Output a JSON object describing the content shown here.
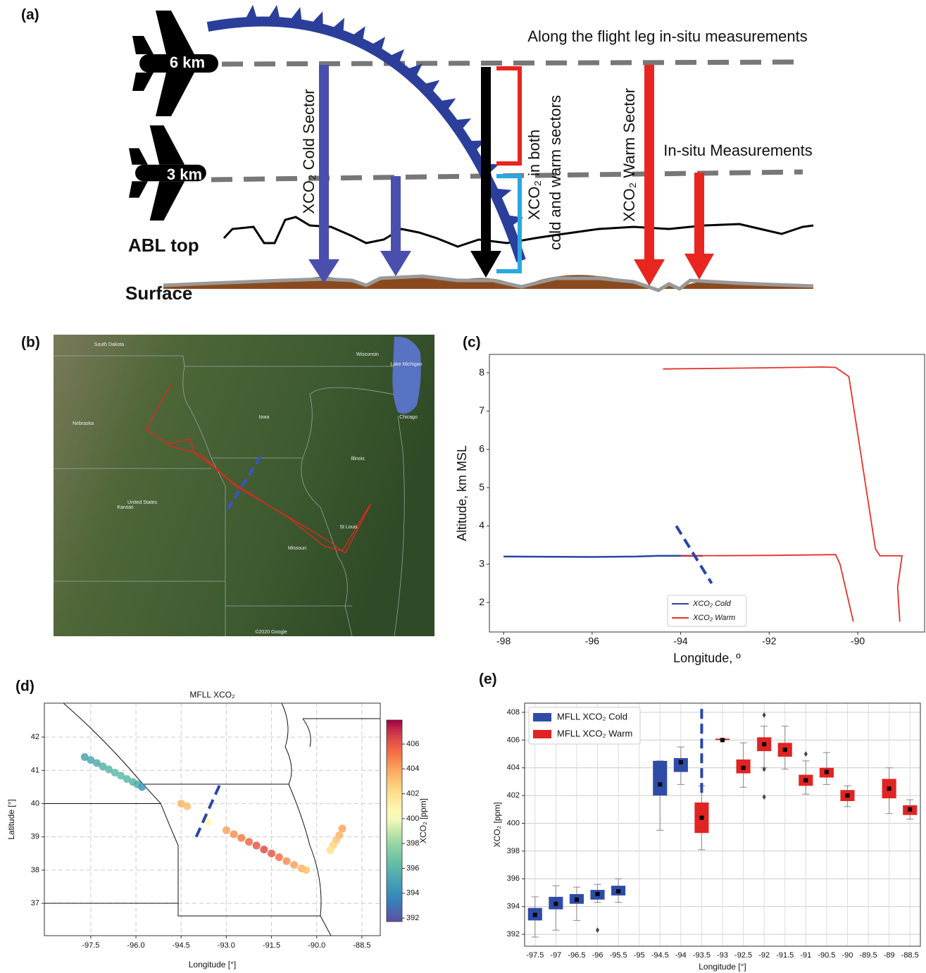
{
  "panel_labels": [
    "(a)",
    "(b)",
    "(c)",
    "(d)",
    "(e)"
  ],
  "diagram": {
    "top_note": "Along the flight leg in-situ measurements",
    "altitudes": [
      "6 km",
      "3 km"
    ],
    "cold_sector": "XCO₂ Cold Sector",
    "both_sectors": [
      "XCO₂ in both",
      "cold and warm sectors"
    ],
    "warm_sector": "XCO₂ Warm Sector",
    "in_situ": "In-situ Measurements",
    "abl_top": "ABL top",
    "surface": "Surface"
  },
  "map": {
    "labels": [
      "South Dakota",
      "Wisconsin",
      "Lake Michigan",
      "Nebraska",
      "Iowa",
      "Chicago",
      "Illinois",
      "United States",
      "Kansas",
      "St Louis",
      "Missouri",
      "©2020 Google"
    ]
  },
  "chart_data": [
    {
      "type": "line",
      "x_label": "Longitude, º",
      "y_label": "Altitude, km MSL",
      "xlim": [
        -98.32,
        -88.49
      ],
      "ylim": [
        1.23,
        8.48
      ],
      "xticks": [
        -98,
        -96,
        -94,
        -92,
        -90
      ],
      "yticks": [
        2,
        3,
        4,
        5,
        6,
        7,
        8
      ],
      "legend": "lower center",
      "series": [
        {
          "name": "XCO₂ Cold",
          "color": "#2a44a8",
          "x": [
            -98,
            -96,
            -95,
            -94.5,
            -94,
            -93.5
          ],
          "values": [
            3.2,
            3.19,
            3.2,
            3.22,
            3.22,
            3.22
          ]
        },
        {
          "name": "XCO₂ Warm",
          "color": "#e8302a",
          "x": [
            -94.4,
            -92,
            -90.8,
            -90.5,
            -90.2,
            -89.6,
            -89.5,
            -89,
            -89.1,
            -89.05,
            null,
            -94,
            -92,
            -90.5,
            -90.4,
            -90.1
          ],
          "values": [
            8.1,
            8.13,
            8.15,
            8.14,
            7.9,
            3.4,
            3.22,
            3.22,
            2.4,
            1.5,
            null,
            3.22,
            3.23,
            3.25,
            3.0,
            1.5
          ]
        }
      ],
      "front": {
        "color": "#2a44a8",
        "x": [
          -94.1,
          -93.3
        ],
        "values": [
          4.0,
          2.5
        ]
      }
    },
    {
      "type": "scatter",
      "title": "MFLL XCO₂",
      "x_label": "Longitude [°]",
      "y_label": "Latitude [°]",
      "colorbar_label": "XCO₂ [ppm]",
      "xlim": [
        -99.04,
        -87.89
      ],
      "ylim": [
        36.03,
        43.02
      ],
      "xticks": [
        -97.5,
        {
          "value": -96,
          "label": "-96.0"
        },
        -94.5,
        {
          "value": -93,
          "label": "-93.0"
        },
        -91.5,
        {
          "value": -90,
          "label": "-90.0"
        },
        -88.5
      ],
      "yticks": [
        37,
        38,
        39,
        40,
        41,
        42
      ],
      "clim": [
        391.72,
        407.93
      ],
      "cticks": [
        392,
        394,
        396,
        398,
        400,
        402,
        404,
        406
      ],
      "colormap": "Spectral_r",
      "grid": true,
      "x": [
        -97.7,
        -97.5,
        -97.3,
        -97.1,
        -96.9,
        -96.7,
        -96.5,
        -96.3,
        -96.1,
        -95.95,
        -95.8,
        -94.5,
        -94.3,
        -93.6,
        -93,
        -92.75,
        -92.5,
        -92.25,
        -92,
        -91.75,
        -91.5,
        -91.25,
        -91,
        -90.75,
        -90.5,
        -90.35,
        -89.15,
        -89.25,
        -89.35,
        -89.45,
        -89.55
      ],
      "values": [
        41.4,
        41.31,
        41.22,
        41.12,
        41.03,
        40.93,
        40.84,
        40.74,
        40.65,
        40.58,
        40.5,
        40.0,
        39.92,
        39.45,
        39.2,
        39.08,
        38.97,
        38.85,
        38.74,
        38.62,
        38.5,
        38.39,
        38.27,
        38.16,
        38.05,
        38.0,
        39.25,
        39.05,
        38.9,
        38.75,
        38.6
      ],
      "color_values": [
        395,
        395.2,
        395.5,
        395.8,
        396,
        396.2,
        396.3,
        396.1,
        395.9,
        395.5,
        394.5,
        403.5,
        403.2,
        400.5,
        404,
        404.5,
        405,
        405.5,
        406,
        406.3,
        406,
        405.3,
        404.5,
        404,
        403.5,
        403,
        404,
        403.5,
        403,
        402.5,
        402
      ],
      "front": {
        "color": "#2a44a8",
        "x": [
          -94.0,
          -93.2
        ],
        "values": [
          39.0,
          40.6
        ]
      }
    },
    {
      "type": "box",
      "x_label": "Longitude [°]",
      "y_label": "XCO₂ [ppm]",
      "categories": [
        "-97.5",
        "-97",
        "-96.5",
        "-96",
        "-95.5",
        "-95",
        "-94.5",
        "-94",
        "-93.5",
        "-93",
        "-92.5",
        "-92",
        "-91.5",
        "-91",
        "-90.5",
        "-90",
        "-89.5",
        "-89",
        "-88.5"
      ],
      "ylim": [
        391.14,
        408.66
      ],
      "yticks": [
        392,
        394,
        396,
        398,
        400,
        402,
        404,
        406,
        408
      ],
      "grid": true,
      "legend": "upper left",
      "series": [
        {
          "name": "MFLL XCO₂ Cold",
          "color": "#2f4ba8",
          "low": [
            391.8,
            392.3,
            393.0,
            394.3,
            394.3,
            null,
            399.5,
            402.8,
            null,
            null,
            null,
            null,
            null,
            null,
            null,
            null,
            null,
            null,
            null
          ],
          "q1": [
            393.0,
            393.8,
            394.2,
            394.5,
            394.8,
            null,
            402.0,
            403.7,
            null,
            null,
            null,
            null,
            null,
            null,
            null,
            null,
            null,
            null,
            null
          ],
          "mean": [
            393.4,
            394.2,
            394.5,
            394.9,
            395.1,
            null,
            402.8,
            404.4,
            null,
            null,
            null,
            null,
            null,
            null,
            null,
            null,
            null,
            null,
            null
          ],
          "q3": [
            393.9,
            394.7,
            394.9,
            395.2,
            395.5,
            null,
            404.5,
            404.7,
            null,
            null,
            null,
            null,
            null,
            null,
            null,
            null,
            null,
            null,
            null
          ],
          "high": [
            394.7,
            395.5,
            395.4,
            395.6,
            396.0,
            null,
            404.5,
            405.5,
            null,
            null,
            null,
            null,
            null,
            null,
            null,
            null,
            null,
            null,
            null
          ],
          "fliers": [
            null,
            null,
            null,
            [
              392.3
            ],
            null,
            null,
            null,
            null,
            null,
            null,
            null,
            null,
            null,
            null,
            null,
            null,
            null,
            null,
            null
          ]
        },
        {
          "name": "MFLL XCO₂ Warm",
          "color": "#e02424",
          "low": [
            null,
            null,
            null,
            null,
            null,
            null,
            null,
            null,
            398.1,
            406.0,
            402.6,
            404.0,
            403.9,
            402.1,
            402.8,
            401.2,
            null,
            400.7,
            400.3
          ],
          "q1": [
            null,
            null,
            null,
            null,
            null,
            null,
            null,
            null,
            399.3,
            406.0,
            403.6,
            405.2,
            404.8,
            402.7,
            403.3,
            401.6,
            null,
            401.8,
            400.6
          ],
          "mean": [
            null,
            null,
            null,
            null,
            null,
            null,
            null,
            null,
            400.4,
            406.0,
            404.0,
            405.7,
            405.3,
            403.1,
            403.7,
            402.0,
            null,
            402.5,
            401.0
          ],
          "q3": [
            null,
            null,
            null,
            null,
            null,
            null,
            null,
            null,
            401.5,
            406.1,
            404.6,
            406.2,
            405.8,
            403.5,
            404.0,
            402.4,
            null,
            403.2,
            401.3
          ],
          "high": [
            null,
            null,
            null,
            null,
            null,
            null,
            null,
            null,
            402.7,
            406.1,
            405.8,
            407.0,
            407.0,
            404.5,
            405.1,
            402.7,
            null,
            404.0,
            401.7
          ],
          "fliers": [
            null,
            null,
            null,
            null,
            null,
            null,
            null,
            null,
            null,
            null,
            null,
            [
              407.8,
              403.9,
              401.9
            ],
            null,
            [
              405.0
            ],
            null,
            null,
            null,
            null,
            null
          ]
        }
      ],
      "front": {
        "color": "#2a44a8",
        "values": [
          402.2,
          408.6
        ]
      }
    }
  ]
}
